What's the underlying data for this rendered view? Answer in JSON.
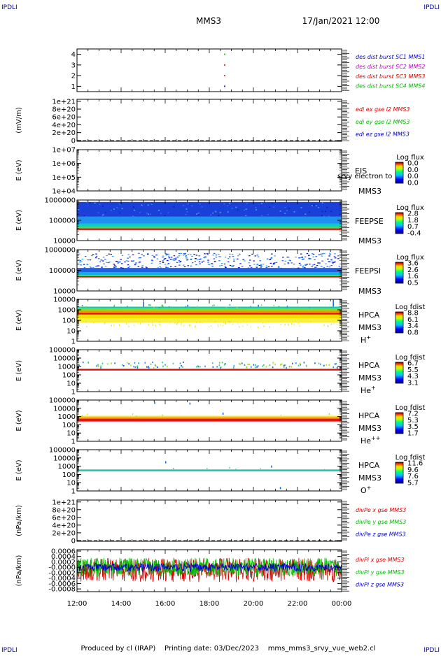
{
  "header": {
    "corner_tl": "IPDLI",
    "corner_tr": "IPDLI",
    "corner_bl": "IPDLI",
    "corner_br": "IPDLI",
    "mission": "MMS3",
    "date": "17/Jan/2021 12:00"
  },
  "footer": {
    "text": "Produced by cl (IRAP)    Printing date: 03/Dec/2023    mms_mms3_srvy_vue_web2.cl"
  },
  "time_axis": {
    "start_hour": 12,
    "end_hour": 24,
    "ticks": [
      "12:00",
      "14:00",
      "16:00",
      "18:00",
      "20:00",
      "22:00",
      "00:00"
    ]
  },
  "chart_data": [
    {
      "id": "dist",
      "type": "scatter",
      "ylabel": "",
      "ylim": [
        0.5,
        4.5
      ],
      "ytick_labels": [
        "4",
        "3",
        "2",
        "1"
      ],
      "ytick_values": [
        4,
        3,
        2,
        1
      ],
      "legend": [
        {
          "text": "des dist burst SC1 MMS1",
          "color": "#0000cc"
        },
        {
          "text": "des dist burst SC2 MMS2",
          "color": "#cc00cc"
        },
        {
          "text": "des dist burst SC3 MMS3",
          "color": "#dd0000"
        },
        {
          "text": "des dist burst SC4 MMS4",
          "color": "#00bb00"
        }
      ],
      "points": [
        {
          "time": 18.7,
          "y": 4,
          "color": "#00bb00"
        },
        {
          "time": 18.7,
          "y": 3,
          "color": "#dd0000"
        },
        {
          "time": 18.7,
          "y": 2,
          "color": "#dd0000"
        },
        {
          "time": 18.7,
          "y": 1,
          "color": "#0000cc"
        }
      ]
    },
    {
      "id": "edi",
      "type": "line",
      "ylabel": "(mV/m)",
      "ytick_labels": [
        "1e+21",
        "8e+20",
        "6e+20",
        "4e+20",
        "2e+20",
        "0"
      ],
      "ytick_values": [
        1e+21,
        8e+20,
        6e+20,
        4e+20,
        2e+20,
        0
      ],
      "ylim": [
        -2e+19,
        1.05e+21
      ],
      "zero_line": true,
      "legend": [
        {
          "text": "edi ex gse l2 MMS3",
          "color": "#dd0000"
        },
        {
          "text": "edi ey gse l2 MMS3",
          "color": "#00bb00"
        },
        {
          "text": "edi ez gse l2 MMS3",
          "color": "#0000cc"
        }
      ]
    },
    {
      "id": "eis",
      "type": "heatmap",
      "ylabel": "E (eV)",
      "yscale": "log",
      "ytick_labels": [
        "1e+07",
        "1e+06",
        "1e+05",
        "1e+04"
      ],
      "ytick_values": [
        10000000.0,
        1000000.0,
        100000.0,
        10000.0
      ],
      "instrument": "EIS",
      "instrument_note": "srvy electron to",
      "spacecraft": "MMS3",
      "colorbar_title": "Log flux",
      "colorbar_ticks": [
        "0.0",
        "0.0",
        "0.0",
        "0.0"
      ]
    },
    {
      "id": "feepse",
      "type": "heatmap",
      "ylabel": "E (eV)",
      "yscale": "log",
      "ytick_labels": [
        "1000000",
        "100000",
        "10000"
      ],
      "ytick_values": [
        1000000.0,
        100000.0,
        10000.0
      ],
      "instrument": "FEEPSE",
      "spacecraft": "MMS3",
      "colorbar_title": "Log flux",
      "colorbar_ticks": [
        "2.8",
        "1.8",
        "0.7",
        "-0.4"
      ]
    },
    {
      "id": "feepsi",
      "type": "heatmap",
      "ylabel": "E (eV)",
      "yscale": "log",
      "ytick_labels": [
        "1000000",
        "100000",
        "10000"
      ],
      "ytick_values": [
        1000000.0,
        100000.0,
        10000.0
      ],
      "instrument": "FEEPSI",
      "spacecraft": "MMS3",
      "colorbar_title": "Log flux",
      "colorbar_ticks": [
        "3.6",
        "2.6",
        "1.6",
        "0.5"
      ]
    },
    {
      "id": "hpca_h",
      "type": "heatmap",
      "ylabel": "E (eV)",
      "yscale": "log",
      "ytick_labels": [
        "10000",
        "1000",
        "100",
        "10",
        "1"
      ],
      "ytick_values": [
        10000.0,
        1000.0,
        100.0,
        10.0,
        1
      ],
      "instrument": "HPCA",
      "spacecraft": "MMS3",
      "species": "H",
      "species_sup": "+",
      "colorbar_title": "Log fdist",
      "colorbar_ticks": [
        "8.8",
        "6.1",
        "3.4",
        "0.8"
      ]
    },
    {
      "id": "hpca_he",
      "type": "heatmap",
      "ylabel": "E (eV)",
      "yscale": "log",
      "ytick_labels": [
        "100000",
        "10000",
        "1000",
        "100",
        "10",
        "1"
      ],
      "ytick_values": [
        100000.0,
        10000.0,
        1000.0,
        100.0,
        10.0,
        1
      ],
      "instrument": "HPCA",
      "spacecraft": "MMS3",
      "species": "He",
      "species_sup": "+",
      "colorbar_title": "Log fdist",
      "colorbar_ticks": [
        "6.7",
        "5.5",
        "4.3",
        "3.1"
      ]
    },
    {
      "id": "hpca_hepp",
      "type": "heatmap",
      "ylabel": "E (eV)",
      "yscale": "log",
      "ytick_labels": [
        "100000",
        "10000",
        "1000",
        "100",
        "10",
        "1"
      ],
      "ytick_values": [
        100000.0,
        10000.0,
        1000.0,
        100.0,
        10.0,
        1
      ],
      "instrument": "HPCA",
      "spacecraft": "MMS3",
      "species": "He",
      "species_sup": "++",
      "colorbar_title": "Log fdist",
      "colorbar_ticks": [
        "7.2",
        "5.3",
        "3.5",
        "1.7"
      ]
    },
    {
      "id": "hpca_o",
      "type": "heatmap",
      "ylabel": "E (eV)",
      "yscale": "log",
      "ytick_labels": [
        "100000",
        "10000",
        "1000",
        "100",
        "10",
        "1"
      ],
      "ytick_values": [
        100000.0,
        10000.0,
        1000.0,
        100.0,
        10.0,
        1
      ],
      "instrument": "HPCA",
      "spacecraft": "MMS3",
      "species": "O",
      "species_sup": "+",
      "colorbar_title": "Log fdist",
      "colorbar_ticks": [
        "11.6",
        "9.6",
        "7.6",
        "5.7"
      ]
    },
    {
      "id": "divpe",
      "type": "line",
      "ylabel": "(nPa/km)",
      "ytick_labels": [
        "1e+21",
        "8e+20",
        "6e+20",
        "4e+20",
        "2e+20",
        "0"
      ],
      "ytick_values": [
        1e+21,
        8e+20,
        6e+20,
        4e+20,
        2e+20,
        0
      ],
      "ylim": [
        -2e+19,
        1.05e+21
      ],
      "zero_line": true,
      "legend": [
        {
          "text": "divPe x gse MMS3",
          "color": "#dd0000"
        },
        {
          "text": "divPe y gse MMS3",
          "color": "#00bb00"
        },
        {
          "text": "divPe z gse MMS3",
          "color": "#0000cc"
        }
      ]
    },
    {
      "id": "divpi",
      "type": "line",
      "ylabel": "(nPa/km)",
      "ytick_labels": [
        "0.0006",
        "0.0004",
        "0.0002",
        "-0.0000",
        "-0.0002",
        "-0.0004",
        "-0.0006",
        "-0.0008"
      ],
      "ytick_values": [
        0.0006,
        0.0004,
        0.0002,
        0,
        -0.0002,
        -0.0004,
        -0.0006,
        -0.0008
      ],
      "ylim": [
        -0.0009,
        0.00065
      ],
      "legend": [
        {
          "text": "divPi x gse MMS3",
          "color": "#dd0000"
        },
        {
          "text": "divPi y gse MMS3",
          "color": "#00bb00"
        },
        {
          "text": "divPi z gse MMS3",
          "color": "#0000cc"
        }
      ],
      "series": [
        {
          "name": "divPi x gse MMS3",
          "color": "#dd0000",
          "mean": -0.0001,
          "spread": 0.00045
        },
        {
          "name": "divPi y gse MMS3",
          "color": "#00bb00",
          "mean": 0.0,
          "spread": 0.00035
        },
        {
          "name": "divPi z gse MMS3",
          "color": "#0000cc",
          "mean": 0.0,
          "spread": 0.00015
        }
      ]
    }
  ]
}
